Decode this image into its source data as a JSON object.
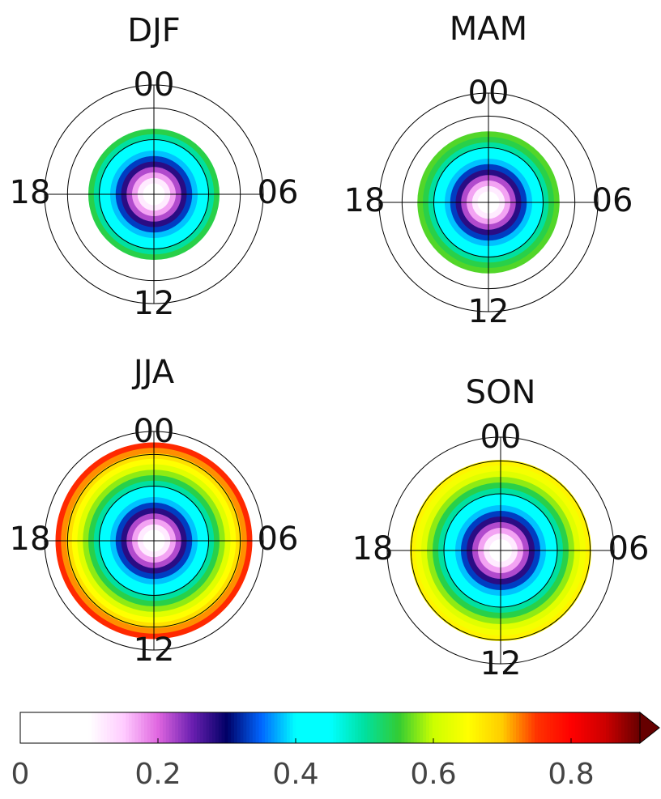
{
  "chart_data": [
    {
      "type": "polar",
      "title": "DJF",
      "theta_labels": [
        "00",
        "06",
        "12",
        "18"
      ],
      "values": [
        0.08,
        0.1,
        0.12,
        0.17,
        0.22,
        0.28,
        0.33,
        0.38,
        0.42,
        0.45,
        0.5,
        0.54
      ]
    },
    {
      "type": "polar",
      "title": "MAM",
      "theta_labels": [
        "00",
        "06",
        "12",
        "18"
      ],
      "values": [
        0.08,
        0.1,
        0.12,
        0.17,
        0.22,
        0.28,
        0.33,
        0.38,
        0.42,
        0.45,
        0.5,
        0.54,
        0.56
      ]
    },
    {
      "type": "polar",
      "title": "JJA",
      "theta_labels": [
        "00",
        "06",
        "12",
        "18"
      ],
      "values": [
        0.08,
        0.1,
        0.12,
        0.17,
        0.22,
        0.28,
        0.33,
        0.38,
        0.42,
        0.45,
        0.5,
        0.54,
        0.58,
        0.62,
        0.65,
        0.68,
        0.72,
        0.76
      ]
    },
    {
      "type": "polar",
      "title": "SON",
      "theta_labels": [
        "00",
        "06",
        "12",
        "18"
      ],
      "values": [
        0.08,
        0.1,
        0.12,
        0.17,
        0.22,
        0.28,
        0.33,
        0.38,
        0.42,
        0.45,
        0.5,
        0.54,
        0.58,
        0.62,
        0.64,
        0.66
      ]
    }
  ],
  "colorbar": {
    "ticks": [
      0,
      0.2,
      0.4,
      0.6,
      0.8
    ],
    "lim": [
      0,
      0.9
    ],
    "extend": "max",
    "colors": [
      "#ffffff",
      "#ffffff",
      "#ffffff",
      "#ffccff",
      "#e066e0",
      "#6a1fb0",
      "#000066",
      "#0066ff",
      "#00ffff",
      "#00ffff",
      "#00e0a0",
      "#33cc33",
      "#ccff00",
      "#ffff00",
      "#ffcc00",
      "#ff3300",
      "#ff0000",
      "#cc0000",
      "#660000"
    ]
  }
}
